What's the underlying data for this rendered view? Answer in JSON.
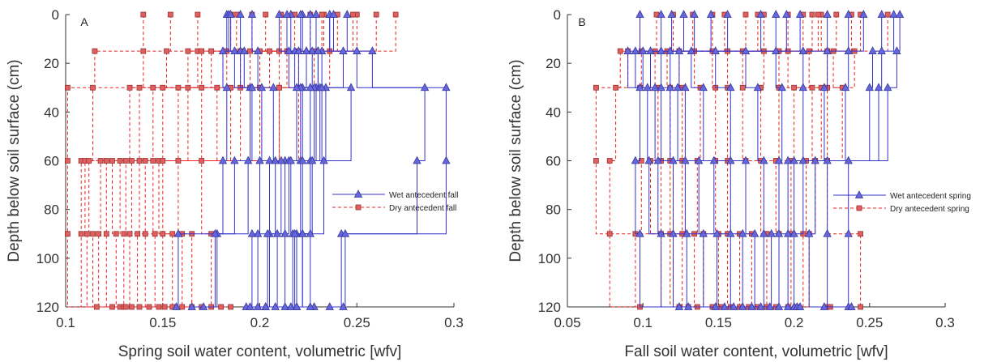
{
  "chart_data": [
    {
      "type": "line",
      "panel_label": "A",
      "xlabel": "Spring soil water content, volumetric [wfv]",
      "ylabel": "Depth below soil surface (cm)",
      "xlim": [
        0.1,
        0.3
      ],
      "ylim": [
        120,
        0
      ],
      "y_inverted": true,
      "xticks": [
        "0.1",
        "0.15",
        "0.2",
        "0.25",
        "0.3"
      ],
      "yticks": [
        "0",
        "20",
        "40",
        "60",
        "80",
        "100",
        "120"
      ],
      "depths": [
        0,
        15,
        30,
        60,
        90,
        120
      ],
      "legend_position": "right",
      "colors": {
        "wet": "#3333cc",
        "wet_marker": "#6666dd",
        "dry": "#ee2222",
        "dry_marker": "#e06060"
      },
      "series": [
        {
          "name": "Wet antecedent fall",
          "style": "solid-triangle",
          "profiles": [
            [
              0.196,
              0.199,
              0.207,
              0.2,
              0.196,
              0.193
            ],
            [
              0.216,
              0.218,
              0.222,
              0.213,
              0.209,
              0.203
            ],
            [
              0.229,
              0.232,
              0.247,
              0.221,
              0.219,
              0.219
            ],
            [
              0.236,
              0.258,
              0.296,
              0.296,
              0.242,
              0.236
            ],
            [
              0.19,
              0.19,
              0.195,
              0.187,
              0.178,
              0.171
            ],
            [
              0.214,
              0.22,
              0.229,
              0.226,
              0.217,
              0.213
            ],
            [
              0.226,
              0.227,
              0.234,
              0.233,
              0.222,
              0.219
            ],
            [
              0.245,
              0.25,
              0.285,
              0.281,
              0.244,
              0.243
            ],
            [
              0.183,
              0.187,
              0.196,
              0.194,
              0.177,
              0.165
            ],
            [
              0.21,
              0.215,
              0.221,
              0.211,
              0.205,
              0.199
            ],
            [
              0.222,
              0.224,
              0.228,
              0.215,
              0.213,
              0.208
            ],
            [
              0.236,
              0.23,
              0.226,
              0.222,
              0.218,
              0.216
            ],
            [
              0.184,
              0.181,
              0.183,
              0.181,
              0.158,
              0.157
            ],
            [
              0.221,
              0.23,
              0.231,
              0.216,
              0.226,
              0.228
            ],
            [
              0.229,
              0.224,
              0.219,
              0.208,
              0.204,
              0.203
            ],
            [
              0.238,
              0.243,
              0.232,
              0.227,
              0.222,
              0.226
            ],
            [
              0.185,
              0.192,
              0.201,
              0.205,
              0.199,
              0.195
            ]
          ]
        },
        {
          "name": "Dry antecedent fall",
          "style": "dashed-square",
          "profiles": [
            [
              0.14,
              0.115,
              0.101,
              0.101,
              0.101,
              0.116
            ],
            [
              0.154,
              0.14,
              0.114,
              0.108,
              0.108,
              0.124
            ],
            [
              0.168,
              0.152,
              0.133,
              0.11,
              0.111,
              0.128
            ],
            [
              0.185,
              0.163,
              0.138,
              0.112,
              0.114,
              0.13
            ],
            [
              0.196,
              0.168,
              0.145,
              0.118,
              0.117,
              0.131
            ],
            [
              0.203,
              0.17,
              0.15,
              0.121,
              0.121,
              0.134
            ],
            [
              0.211,
              0.175,
              0.158,
              0.124,
              0.126,
              0.138
            ],
            [
              0.218,
              0.183,
              0.163,
              0.128,
              0.13,
              0.143
            ],
            [
              0.226,
              0.19,
              0.17,
              0.131,
              0.133,
              0.148
            ],
            [
              0.233,
              0.195,
              0.178,
              0.134,
              0.137,
              0.151
            ],
            [
              0.24,
              0.2,
              0.185,
              0.138,
              0.141,
              0.155
            ],
            [
              0.25,
              0.205,
              0.19,
              0.141,
              0.146,
              0.16
            ],
            [
              0.26,
              0.21,
              0.195,
              0.145,
              0.15,
              0.165
            ],
            [
              0.27,
              0.214,
              0.2,
              0.148,
              0.155,
              0.17
            ],
            [
              0.188,
              0.22,
              0.21,
              0.15,
              0.16,
              0.175
            ],
            [
              0.232,
              0.228,
              0.22,
              0.158,
              0.165,
              0.18
            ],
            [
              0.248,
              0.236,
              0.21,
              0.17,
              0.175,
              0.185
            ]
          ]
        }
      ]
    },
    {
      "type": "line",
      "panel_label": "B",
      "xlabel": "Fall soil water content, volumetric [wfv]",
      "ylabel": "Depth below soil surface (cm)",
      "xlim": [
        0.05,
        0.3
      ],
      "ylim": [
        120,
        0
      ],
      "y_inverted": true,
      "xticks": [
        "0.05",
        "0.1",
        "0.15",
        "0.2",
        "0.25",
        "0.3"
      ],
      "yticks": [
        "0",
        "20",
        "40",
        "60",
        "80",
        "100",
        "120"
      ],
      "depths": [
        0,
        15,
        30,
        60,
        90,
        120
      ],
      "legend_position": "right",
      "colors": {
        "wet": "#3333cc",
        "wet_marker": "#6666dd",
        "dry": "#ee2222",
        "dry_marker": "#e06060"
      },
      "series": [
        {
          "name": "Wet antecedent spring",
          "style": "solid-triangle",
          "profiles": [
            [
              0.098,
              0.09,
              0.098,
              0.095,
              0.098,
              0.124
            ],
            [
              0.112,
              0.095,
              0.103,
              0.104,
              0.112,
              0.13
            ],
            [
              0.119,
              0.1,
              0.108,
              0.11,
              0.12,
              0.148
            ],
            [
              0.127,
              0.105,
              0.112,
              0.12,
              0.129,
              0.154
            ],
            [
              0.134,
              0.112,
              0.118,
              0.128,
              0.14,
              0.16
            ],
            [
              0.145,
              0.118,
              0.123,
              0.137,
              0.149,
              0.166
            ],
            [
              0.156,
              0.124,
              0.128,
              0.147,
              0.158,
              0.172
            ],
            [
              0.178,
              0.132,
              0.14,
              0.158,
              0.166,
              0.178
            ],
            [
              0.188,
              0.148,
              0.158,
              0.168,
              0.174,
              0.184
            ],
            [
              0.195,
              0.168,
              0.176,
              0.18,
              0.18,
              0.19
            ],
            [
              0.204,
              0.188,
              0.192,
              0.19,
              0.185,
              0.196
            ],
            [
              0.222,
              0.206,
              0.206,
              0.196,
              0.19,
              0.2
            ],
            [
              0.236,
              0.222,
              0.22,
              0.2,
              0.196,
              0.202
            ],
            [
              0.246,
              0.236,
              0.234,
              0.206,
              0.2,
              0.204
            ],
            [
              0.258,
              0.252,
              0.25,
              0.214,
              0.21,
              0.22
            ],
            [
              0.266,
              0.258,
              0.256,
              0.222,
              0.222,
              0.236
            ],
            [
              0.27,
              0.268,
              0.262,
              0.236,
              0.236,
              0.238
            ]
          ]
        },
        {
          "name": "Dry antecedent spring",
          "style": "dashed-square",
          "profiles": [
            [
              0.109,
              0.085,
              0.069,
              0.069,
              0.078,
              0.098
            ],
            [
              0.12,
              0.09,
              0.082,
              0.078,
              0.095,
              0.124
            ],
            [
              0.133,
              0.099,
              0.098,
              0.099,
              0.112,
              0.13
            ],
            [
              0.146,
              0.108,
              0.11,
              0.105,
              0.118,
              0.136
            ],
            [
              0.154,
              0.116,
              0.118,
              0.112,
              0.126,
              0.146
            ],
            [
              0.168,
              0.124,
              0.126,
              0.118,
              0.134,
              0.152
            ],
            [
              0.18,
              0.134,
              0.138,
              0.126,
              0.14,
              0.158
            ],
            [
              0.196,
              0.146,
              0.148,
              0.136,
              0.15,
              0.164
            ],
            [
              0.206,
              0.156,
              0.156,
              0.148,
              0.156,
              0.17
            ],
            [
              0.212,
              0.166,
              0.166,
              0.156,
              0.164,
              0.176
            ],
            [
              0.218,
              0.18,
              0.178,
              0.168,
              0.172,
              0.182
            ],
            [
              0.228,
              0.196,
              0.19,
              0.178,
              0.182,
              0.188
            ],
            [
              0.238,
              0.21,
              0.2,
              0.188,
              0.19,
              0.196
            ],
            [
              0.244,
              0.222,
              0.212,
              0.198,
              0.198,
              0.202
            ],
            [
              0.262,
              0.24,
              0.222,
              0.208,
              0.206,
              0.222
            ],
            [
              0.216,
              0.226,
              0.232,
              0.214,
              0.21,
              0.224
            ],
            [
              0.176,
              0.19,
              0.218,
              0.222,
              0.244,
              0.244
            ]
          ]
        }
      ]
    }
  ]
}
